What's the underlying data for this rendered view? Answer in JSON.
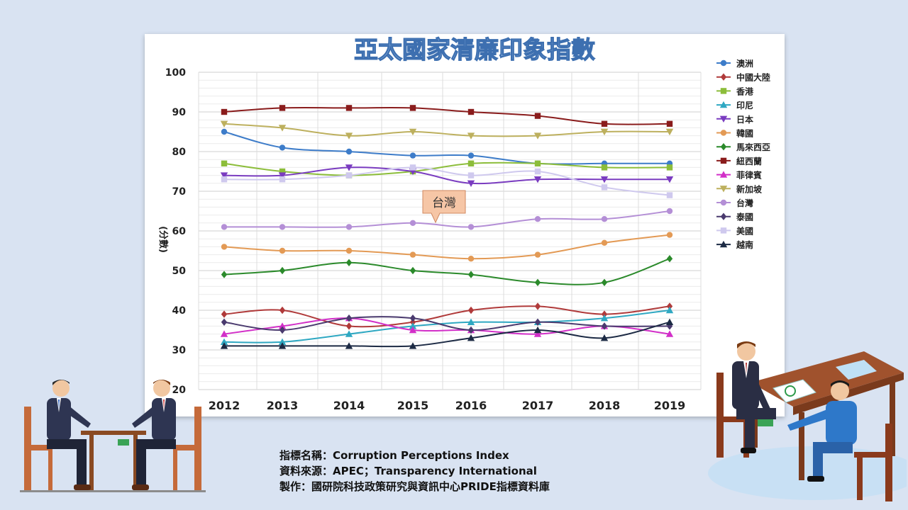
{
  "chart_data": {
    "type": "line",
    "title": "亞太國家清廉印象指數",
    "ylabel": "(分數)",
    "xlabel": "",
    "x": [
      "2012",
      "2013",
      "2014",
      "2015",
      "2016",
      "2017",
      "2018",
      "2019"
    ],
    "ylim": [
      20,
      100
    ],
    "yticks": [
      20,
      30,
      40,
      50,
      60,
      70,
      80,
      90,
      100
    ],
    "grid": true,
    "legend_position": "right",
    "annotation": "台灣",
    "series": [
      {
        "name": "澳洲",
        "color": "#3d7cc9",
        "marker": "circle",
        "values": [
          85,
          81,
          80,
          79,
          79,
          77,
          77,
          77
        ]
      },
      {
        "name": "中國大陸",
        "color": "#b03a3a",
        "marker": "diamond",
        "values": [
          39,
          40,
          36,
          37,
          40,
          41,
          39,
          41
        ]
      },
      {
        "name": "香港",
        "color": "#8cbd3a",
        "marker": "square",
        "values": [
          77,
          75,
          74,
          75,
          77,
          77,
          76,
          76
        ]
      },
      {
        "name": "印尼",
        "color": "#2fa8c2",
        "marker": "triangle",
        "values": [
          32,
          32,
          34,
          36,
          37,
          37,
          38,
          40
        ]
      },
      {
        "name": "日本",
        "color": "#7a3cc0",
        "marker": "triangle-down",
        "values": [
          74,
          74,
          76,
          75,
          72,
          73,
          73,
          73
        ]
      },
      {
        "name": "韓國",
        "color": "#e39a55",
        "marker": "circle",
        "values": [
          56,
          55,
          55,
          54,
          53,
          54,
          57,
          59
        ]
      },
      {
        "name": "馬來西亞",
        "color": "#2b8a2b",
        "marker": "diamond",
        "values": [
          49,
          50,
          52,
          50,
          49,
          47,
          47,
          53
        ]
      },
      {
        "name": "紐西蘭",
        "color": "#8a1c1c",
        "marker": "square",
        "values": [
          90,
          91,
          91,
          91,
          90,
          89,
          87,
          87
        ]
      },
      {
        "name": "菲律賓",
        "color": "#d22fc8",
        "marker": "triangle",
        "values": [
          34,
          36,
          38,
          35,
          35,
          34,
          36,
          34
        ]
      },
      {
        "name": "新加坡",
        "color": "#bdb05e",
        "marker": "triangle-down",
        "values": [
          87,
          86,
          84,
          85,
          84,
          84,
          85,
          85
        ]
      },
      {
        "name": "台灣",
        "color": "#b48fd6",
        "marker": "circle",
        "values": [
          61,
          61,
          61,
          62,
          61,
          63,
          63,
          65
        ]
      },
      {
        "name": "泰國",
        "color": "#4a3a6e",
        "marker": "diamond",
        "values": [
          37,
          35,
          38,
          38,
          35,
          37,
          36,
          36
        ]
      },
      {
        "name": "美國",
        "color": "#cfc9ee",
        "marker": "square",
        "values": [
          73,
          73,
          74,
          76,
          74,
          75,
          71,
          69
        ]
      },
      {
        "name": "越南",
        "color": "#1c2a44",
        "marker": "triangle",
        "values": [
          31,
          31,
          31,
          31,
          33,
          35,
          33,
          37
        ]
      }
    ]
  },
  "footer": {
    "line1": "指標名稱：Corruption Perceptions Index",
    "line2": "資料來源：APEC；Transparency International",
    "line3": "製作：國研院科技政策研究與資訊中心PRIDE指標資料庫"
  }
}
